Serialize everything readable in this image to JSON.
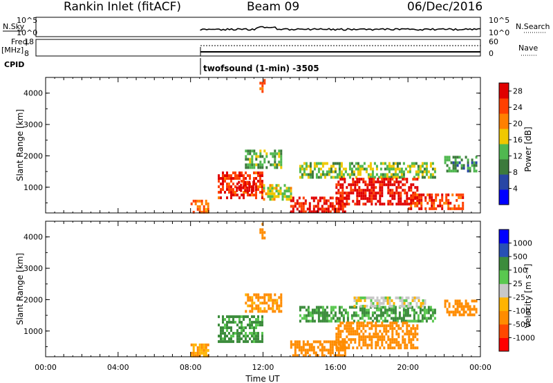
{
  "header": {
    "station": "Rankin Inlet (fitACF)",
    "beam": "Beam 09",
    "date": "06/Dec/2016"
  },
  "summary_panels": {
    "nsky_label": "N.Sky",
    "nsky_ticks": [
      "10^5",
      "10^0"
    ],
    "nsearch_label": "N.Search",
    "nsearch_ticks": [
      "10^5",
      "10^0"
    ],
    "freq_label": "Freq.",
    "freq_unit": "[MHz]",
    "freq_ticks": [
      "18",
      "8"
    ],
    "nave_label": "Nave",
    "nave_ticks": [
      "60",
      "0"
    ],
    "cpid_label": "CPID",
    "program": "twofsound (1-min) -3505"
  },
  "colors": {
    "power": [
      "#0000ff",
      "#2846a5",
      "#3c7a3c",
      "#50b850",
      "#f0c800",
      "#ff8000",
      "#ff4000",
      "#e00000"
    ],
    "velocity": [
      "#ff0000",
      "#ff4800",
      "#ff8c00",
      "#ffb400",
      "#c8c8c8",
      "#5ac850",
      "#3c8c3c",
      "#2850b4",
      "#0000ff"
    ]
  },
  "chart_data": [
    {
      "type": "heatmap",
      "title": "Power",
      "ylabel": "Slant Range [km]",
      "xlabel": "",
      "x_range_hours": [
        0,
        24
      ],
      "ylim": [
        180,
        4500
      ],
      "yticks": [
        "4000",
        "3000",
        "2000",
        "1000"
      ],
      "colorbar": {
        "label": "Power [dB]",
        "ticks": [
          "28",
          "24",
          "20",
          "16",
          "12",
          "8",
          "4"
        ],
        "range": [
          0,
          30
        ]
      },
      "regions": [
        {
          "t0": 8.0,
          "t1": 9.0,
          "r0": 180,
          "r1": 600,
          "v": 22
        },
        {
          "t0": 9.5,
          "t1": 12.0,
          "r0": 700,
          "r1": 1500,
          "v": 26
        },
        {
          "t0": 10.5,
          "t1": 11.5,
          "r0": 900,
          "r1": 1200,
          "v": 29
        },
        {
          "t0": 11.0,
          "t1": 13.0,
          "r0": 1600,
          "r1": 2200,
          "v": 12
        },
        {
          "t0": 12.0,
          "t1": 13.5,
          "r0": 600,
          "r1": 1100,
          "v": 16
        },
        {
          "t0": 13.5,
          "t1": 16.5,
          "r0": 180,
          "r1": 700,
          "v": 27
        },
        {
          "t0": 14.0,
          "t1": 21.5,
          "r0": 1300,
          "r1": 1800,
          "v": 14
        },
        {
          "t0": 16.0,
          "t1": 20.5,
          "r0": 500,
          "r1": 1300,
          "v": 28
        },
        {
          "t0": 20.0,
          "t1": 23.0,
          "r0": 300,
          "r1": 800,
          "v": 24
        },
        {
          "t0": 22.0,
          "t1": 23.8,
          "r0": 1500,
          "r1": 2000,
          "v": 10
        },
        {
          "t0": 11.8,
          "t1": 12.1,
          "r0": 4000,
          "r1": 4450,
          "v": 22
        }
      ]
    },
    {
      "type": "heatmap",
      "title": "Velocity",
      "ylabel": "Slant Range [km]",
      "xlabel": "Time UT",
      "x_range_hours": [
        0,
        24
      ],
      "ylim": [
        180,
        4500
      ],
      "xticks": [
        "00:00",
        "04:00",
        "08:00",
        "12:00",
        "16:00",
        "20:00",
        "00:00"
      ],
      "yticks": [
        "4000",
        "3000",
        "2000",
        "1000"
      ],
      "colorbar": {
        "label": "Velocity [m s⁻¹]",
        "ticks": [
          "1000",
          "500",
          "100",
          "25",
          "-25",
          "-100",
          "-500",
          "-1000"
        ]
      },
      "regions": [
        {
          "t0": 8.0,
          "t1": 9.0,
          "r0": 180,
          "r1": 600,
          "v": -100
        },
        {
          "t0": 9.5,
          "t1": 12.0,
          "r0": 700,
          "r1": 1500,
          "v": 150
        },
        {
          "t0": 11.0,
          "t1": 13.0,
          "r0": 1600,
          "r1": 2200,
          "v": -150
        },
        {
          "t0": 13.5,
          "t1": 16.5,
          "r0": 180,
          "r1": 700,
          "v": -300
        },
        {
          "t0": 14.0,
          "t1": 21.5,
          "r0": 1300,
          "r1": 1800,
          "v": 120
        },
        {
          "t0": 16.0,
          "t1": 20.5,
          "r0": 500,
          "r1": 1300,
          "v": -200
        },
        {
          "t0": 17.0,
          "t1": 21.0,
          "r0": 1800,
          "r1": 2100,
          "v": 0
        },
        {
          "t0": 22.0,
          "t1": 23.8,
          "r0": 1500,
          "r1": 2000,
          "v": -200
        },
        {
          "t0": 11.8,
          "t1": 12.1,
          "r0": 4000,
          "r1": 4450,
          "v": -150
        }
      ]
    }
  ]
}
